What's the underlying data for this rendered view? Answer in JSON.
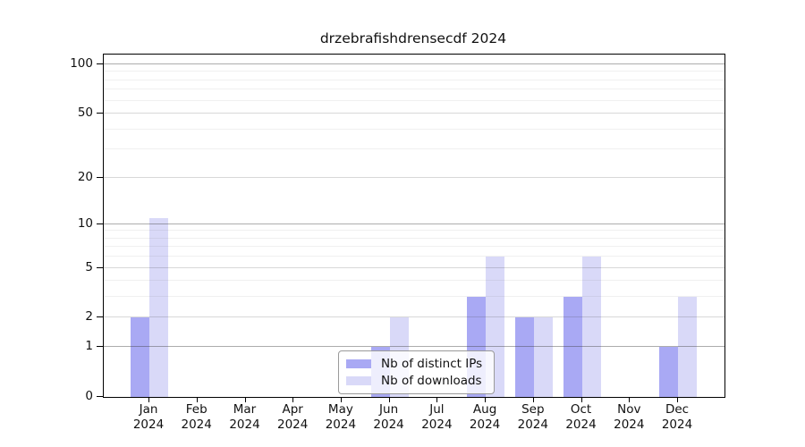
{
  "title": "drzebrafishdrensecdf 2024",
  "colors": {
    "distinct_ips_bar": "#a9a9f4",
    "downloads_bar": "#d9d9f8",
    "axis": "#000000",
    "grid_major": "#b3b3b3",
    "grid_mid": "#d6d6d6",
    "grid_minor": "#ededed",
    "legend_border": "#9a9a9a",
    "background": "#ffffff"
  },
  "chart_data": {
    "type": "bar",
    "title": "drzebrafishdrensecdf 2024",
    "categories": [
      "Jan 2024",
      "Feb 2024",
      "Mar 2024",
      "Apr 2024",
      "May 2024",
      "Jun 2024",
      "Jul 2024",
      "Aug 2024",
      "Sep 2024",
      "Oct 2024",
      "Nov 2024",
      "Dec 2024"
    ],
    "series": [
      {
        "name": "Nb of distinct IPs",
        "color": "#a9a9f4",
        "values": [
          2,
          0,
          0,
          0,
          0,
          1,
          0,
          3,
          2,
          3,
          0,
          1
        ]
      },
      {
        "name": "Nb of downloads",
        "color": "#d9d9f8",
        "values": [
          11,
          0,
          0,
          0,
          0,
          2,
          0,
          6,
          2,
          6,
          0,
          3
        ]
      }
    ],
    "xlabel": "",
    "ylabel": "",
    "yscale": "log1p",
    "ylim": [
      0,
      115
    ],
    "yticks": [
      0,
      1,
      2,
      5,
      10,
      20,
      50,
      100
    ],
    "yticks_emphasis": [
      1,
      10,
      100
    ],
    "minor_yticks": [
      3,
      4,
      6,
      7,
      8,
      9,
      30,
      40,
      60,
      70,
      80,
      90
    ],
    "grid": true,
    "legend_position": "bottom-center"
  }
}
